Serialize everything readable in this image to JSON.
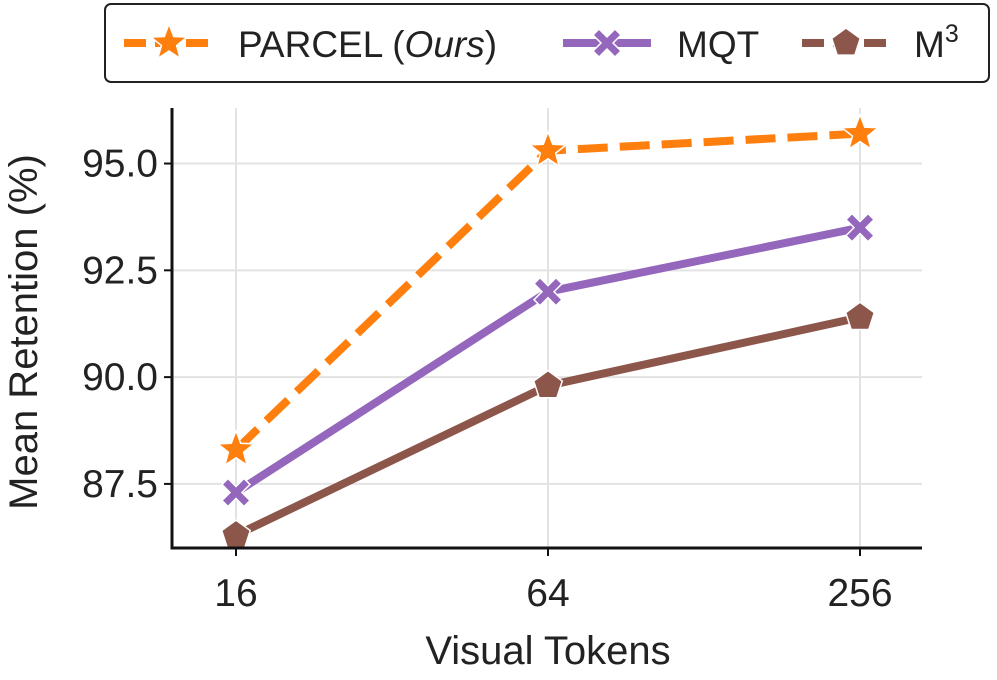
{
  "chart_data": {
    "type": "line",
    "xlabel": "Visual Tokens",
    "ylabel": "Mean Retention (%)",
    "categories": [
      "16",
      "64",
      "256"
    ],
    "y_ticks": [
      87.5,
      90.0,
      92.5,
      95.0
    ],
    "y_tick_labels": [
      "87.5",
      "90.0",
      "92.5",
      "95.0"
    ],
    "ylim": [
      86.0,
      96.3
    ],
    "grid": true,
    "legend_position": "top",
    "series": [
      {
        "name": "PARCEL (Ours)",
        "name_main": "PARCEL (",
        "name_italic": "Ours",
        "name_close": ")",
        "values": [
          88.3,
          95.3,
          95.7
        ],
        "color": "#ff7f0e",
        "marker": "star",
        "dashed": true
      },
      {
        "name": "MQT",
        "values": [
          87.3,
          92.0,
          93.5
        ],
        "color": "#9467bd",
        "marker": "x",
        "dashed": false
      },
      {
        "name": "M3",
        "name_base": "M",
        "name_sup": "3",
        "values": [
          86.3,
          89.8,
          91.4
        ],
        "color": "#8c564b",
        "marker": "pentagon",
        "dashed": true
      }
    ]
  }
}
